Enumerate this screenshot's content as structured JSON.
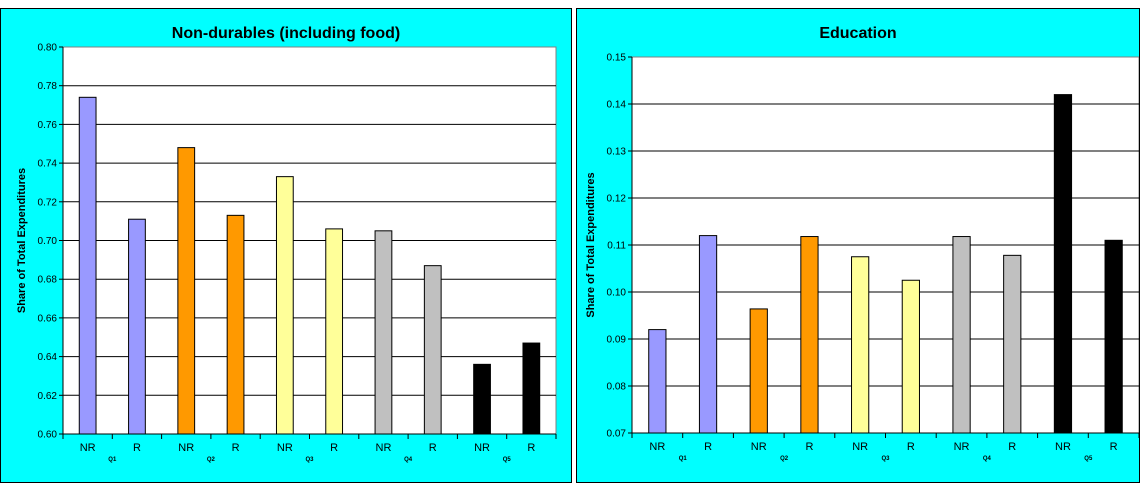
{
  "colors": {
    "background": "#00ffff",
    "plot_area": "#ffffff",
    "quintiles": [
      "#9999ff",
      "#ff9900",
      "#ffff99",
      "#c0c0c0",
      "#000000"
    ]
  },
  "chart_data": [
    {
      "type": "bar",
      "title": "Non-durables (including food)",
      "ylabel": "Share of Total Expenditures",
      "xlabel": "",
      "categories": [
        "NR",
        "R",
        "NR",
        "R",
        "NR",
        "R",
        "NR",
        "R",
        "NR",
        "R"
      ],
      "groups": [
        "Q1",
        "Q2",
        "Q3",
        "Q4",
        "Q5"
      ],
      "values": [
        0.774,
        0.711,
        0.748,
        0.713,
        0.733,
        0.706,
        0.705,
        0.687,
        0.636,
        0.647
      ],
      "ylim": [
        0.6,
        0.8
      ],
      "yticks": [
        "0.60",
        "0.62",
        "0.64",
        "0.66",
        "0.68",
        "0.70",
        "0.72",
        "0.74",
        "0.76",
        "0.78",
        "0.80"
      ],
      "grid": true,
      "legend": "none"
    },
    {
      "type": "bar",
      "title": "Education",
      "ylabel": "Share of Total Expenditures",
      "xlabel": "",
      "categories": [
        "NR",
        "R",
        "NR",
        "R",
        "NR",
        "R",
        "NR",
        "R",
        "NR",
        "R"
      ],
      "groups": [
        "Q1",
        "Q2",
        "Q3",
        "Q4",
        "Q5"
      ],
      "values": [
        0.092,
        0.112,
        0.0964,
        0.1118,
        0.1075,
        0.1025,
        0.1118,
        0.1078,
        0.142,
        0.111
      ],
      "ylim": [
        0.07,
        0.15
      ],
      "yticks": [
        "0.07",
        "0.08",
        "0.09",
        "0.10",
        "0.11",
        "0.12",
        "0.13",
        "0.14",
        "0.15"
      ],
      "grid": true,
      "legend": "none"
    }
  ]
}
